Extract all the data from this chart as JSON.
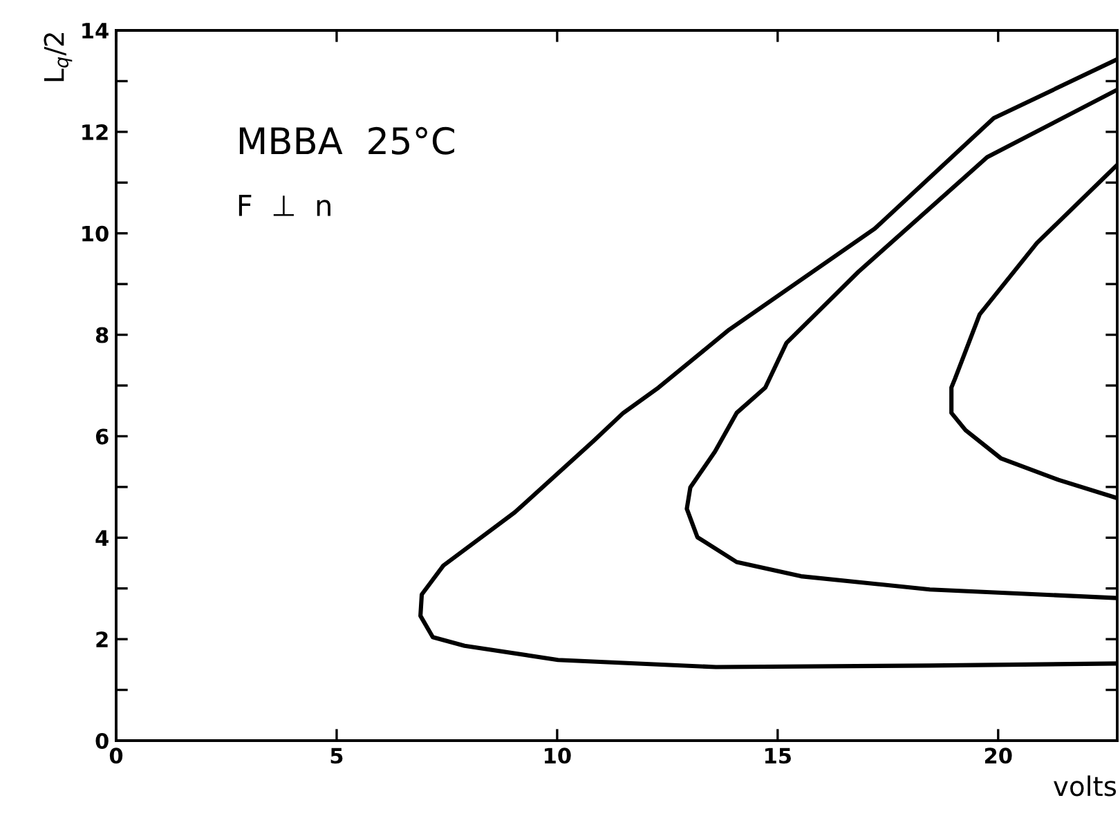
{
  "chart_data": {
    "type": "line",
    "xlabel": "volts",
    "ylabel": "L$_{q}$/2",
    "annotations": [
      "MBBA  25°C",
      "F  ⊥  n"
    ],
    "xlim": [
      0,
      22.7
    ],
    "ylim": [
      0,
      14
    ],
    "xticks": [
      0,
      5,
      10,
      15,
      20
    ],
    "yticks": [
      0,
      {
        "value": 1,
        "label": null
      },
      2,
      {
        "value": 3,
        "label": null
      },
      4,
      {
        "value": 5,
        "label": null
      },
      6,
      {
        "value": 7,
        "label": null
      },
      8,
      {
        "value": 9,
        "label": null
      },
      10,
      {
        "value": 11,
        "label": null
      },
      12,
      {
        "value": 13,
        "label": null
      },
      14
    ],
    "grid": false,
    "legend": false,
    "marker": "none",
    "line_style": "solid",
    "series": [
      {
        "color": "#000000",
        "x": [
          22.7,
          19.9,
          17.2,
          13.9,
          12.3,
          11.5,
          10.83,
          9.04,
          7.42,
          6.93,
          6.9,
          7.18,
          7.9,
          10.02,
          13.6,
          18.45,
          22.7
        ],
        "values": [
          13.43,
          12.27,
          10.09,
          8.1,
          6.96,
          6.46,
          5.91,
          4.5,
          3.45,
          2.88,
          2.46,
          2.04,
          1.87,
          1.59,
          1.45,
          1.48,
          1.52
        ]
      },
      {
        "color": "#000000",
        "x": [
          22.7,
          19.75,
          16.83,
          15.2,
          14.72,
          14.07,
          13.58,
          13.02,
          12.94,
          13.18,
          14.07,
          15.53,
          18.45,
          22.7
        ],
        "values": [
          12.83,
          11.5,
          9.24,
          7.84,
          6.96,
          6.46,
          5.7,
          4.99,
          4.57,
          4.01,
          3.52,
          3.24,
          2.98,
          2.81
        ]
      },
      {
        "color": "#000000",
        "x": [
          22.7,
          20.88,
          19.58,
          19.02,
          18.94,
          18.94,
          19.26,
          20.07,
          21.37,
          22.7
        ],
        "values": [
          11.35,
          9.81,
          8.4,
          7.13,
          6.96,
          6.46,
          6.12,
          5.56,
          5.14,
          4.78
        ]
      }
    ]
  }
}
